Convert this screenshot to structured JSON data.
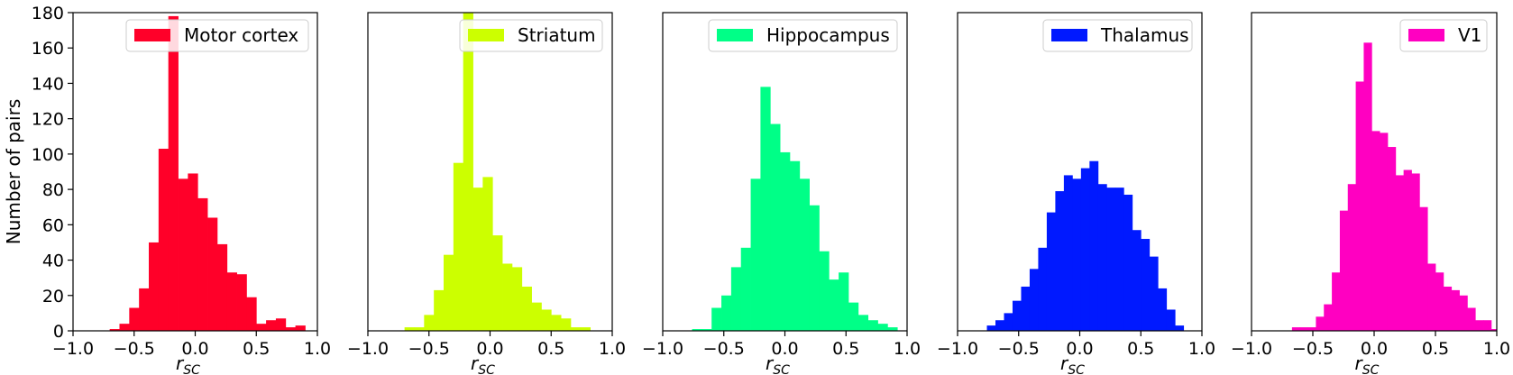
{
  "chart_data": [
    {
      "type": "bar",
      "series_name": "Motor cortex",
      "color": "#ff0029",
      "ylabel": "Number of pairs",
      "xlabel": "r",
      "xlabel_sub": "SC",
      "xlim": [
        -1.0,
        1.0
      ],
      "ylim": [
        0,
        180
      ],
      "xticks": [
        "−1.0",
        "−0.5",
        "0.0",
        "0.5",
        "1.0"
      ],
      "yticks": [
        "0",
        "20",
        "40",
        "60",
        "80",
        "100",
        "120",
        "140",
        "160",
        "180"
      ],
      "legend_position": "upper right",
      "bins_start": -0.7,
      "bin_width": 0.08,
      "values": [
        1,
        4,
        13,
        24,
        50,
        103,
        178,
        86,
        89,
        75,
        64,
        49,
        33,
        32,
        19,
        4,
        6,
        7,
        2,
        3
      ]
    },
    {
      "type": "bar",
      "series_name": "Striatum",
      "color": "#ccff00",
      "xlabel": "r",
      "xlabel_sub": "SC",
      "xlim": [
        -1.0,
        1.0
      ],
      "ylim": [
        0,
        180
      ],
      "xticks": [
        "−1.0",
        "−0.5",
        "0.0",
        "0.5",
        "1.0"
      ],
      "legend_position": "upper right",
      "bins_start": -0.7,
      "bin_width": 0.08,
      "values": [
        2,
        2,
        9,
        23,
        43,
        95,
        205,
        81,
        87,
        54,
        38,
        36,
        25,
        16,
        12,
        9,
        7,
        2,
        2
      ]
    },
    {
      "type": "bar",
      "series_name": "Hippocampus",
      "color": "#00ff87",
      "xlabel": "r",
      "xlabel_sub": "SC",
      "xlim": [
        -1.0,
        1.0
      ],
      "ylim": [
        0,
        180
      ],
      "xticks": [
        "−1.0",
        "−0.5",
        "0.0",
        "0.5",
        "1.0"
      ],
      "legend_position": "upper right",
      "bins_start": -0.76,
      "bin_width": 0.08,
      "values": [
        1,
        1,
        13,
        20,
        36,
        47,
        86,
        138,
        117,
        101,
        96,
        86,
        71,
        45,
        29,
        33,
        16,
        9,
        6,
        4,
        2
      ]
    },
    {
      "type": "bar",
      "series_name": "Thalamus",
      "color": "#0019ff",
      "xlabel": "r",
      "xlabel_sub": "SC",
      "xlim": [
        -1.0,
        1.0
      ],
      "ylim": [
        0,
        180
      ],
      "xticks": [
        "−1.0",
        "−0.5",
        "0.0",
        "0.5",
        "1.0"
      ],
      "legend_position": "upper right",
      "bins_start": -0.76,
      "bin_width": 0.07,
      "values": [
        3,
        6,
        10,
        17,
        25,
        35,
        47,
        67,
        79,
        88,
        86,
        92,
        96,
        83,
        81,
        81,
        77,
        57,
        52,
        42,
        24,
        12,
        3
      ]
    },
    {
      "type": "bar",
      "series_name": "V1",
      "color": "#ff00c1",
      "xlabel": "r",
      "xlabel_sub": "SC",
      "xlim": [
        -1.0,
        1.0
      ],
      "ylim": [
        0,
        180
      ],
      "xticks": [
        "−1.0",
        "−0.5",
        "0.0",
        "0.5",
        "1.0"
      ],
      "legend_position": "upper right",
      "bins_start": -0.67,
      "bin_width": 0.065,
      "values": [
        2,
        2,
        2,
        8,
        15,
        33,
        68,
        83,
        141,
        163,
        113,
        112,
        104,
        88,
        91,
        89,
        70,
        38,
        33,
        25,
        23,
        20,
        13,
        6,
        6,
        1,
        1
      ]
    }
  ]
}
